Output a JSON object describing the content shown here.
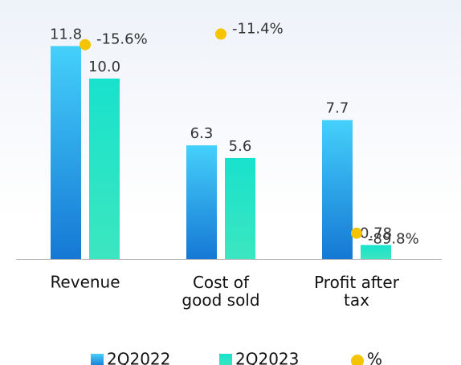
{
  "chart_data": {
    "type": "bar",
    "categories": [
      "Revenue",
      "Cost of\ngood sold",
      "Profit after\ntax"
    ],
    "series": [
      {
        "name": "2Q2022",
        "color": "#2aa8ec",
        "values": [
          11.8,
          6.3,
          7.7
        ]
      },
      {
        "name": "2Q2023",
        "color": "#22dcc4",
        "values": [
          10.0,
          5.6,
          0.78
        ],
        "value_labels": [
          "10.0",
          "5.6",
          "0.78"
        ]
      },
      {
        "name": "%",
        "type": "scatter",
        "axis": "y2",
        "color": "#f5c400",
        "values": [
          -15.6,
          -11.4,
          -89.8
        ],
        "value_labels": [
          "-15.6%",
          "-11.4%",
          "-89.8%"
        ]
      }
    ],
    "ylim": [
      0,
      14.35
    ],
    "y2lim": [
      -100,
      2
    ],
    "legend": "bottom"
  }
}
